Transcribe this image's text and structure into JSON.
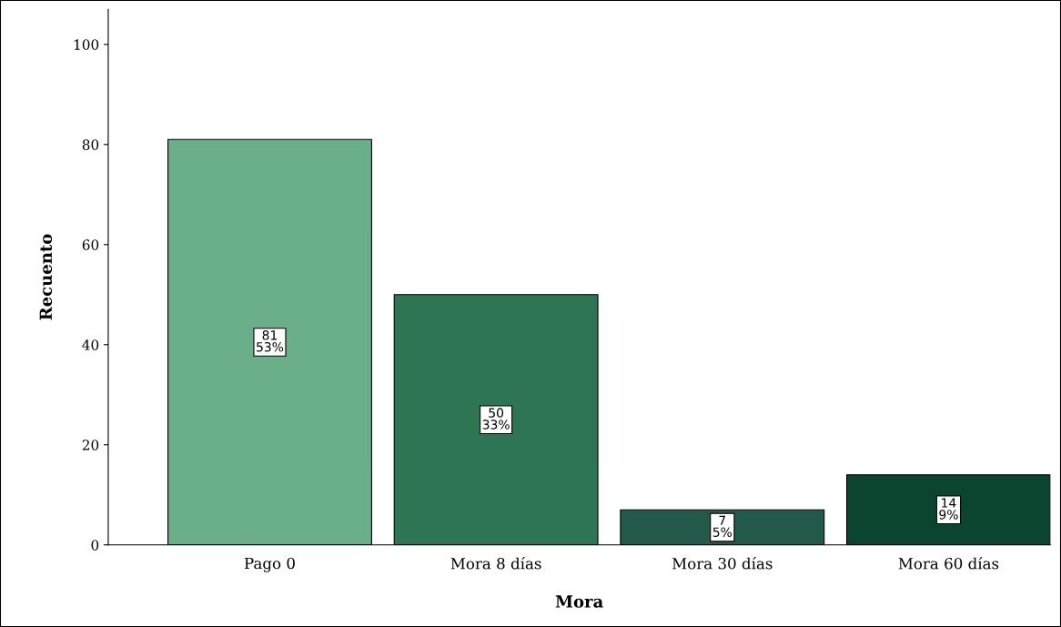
{
  "chart_data": {
    "type": "bar",
    "xlabel": "Mora",
    "ylabel": "Recuento",
    "categories": [
      "Pago 0",
      "Mora 8 días",
      "Mora 30 días",
      "Mora 60 días"
    ],
    "values": [
      81,
      50,
      7,
      14
    ],
    "colors": [
      "#6aae8a",
      "#2e7554",
      "#22594a",
      "#0b4530"
    ],
    "value_labels": [
      "81\n53%",
      "50\n33%",
      "7\n5%",
      "14\n9%"
    ],
    "ylim": [
      0,
      107
    ],
    "yticks": [
      0,
      20,
      40,
      60,
      80,
      100
    ],
    "grid": false,
    "legend": false
  }
}
